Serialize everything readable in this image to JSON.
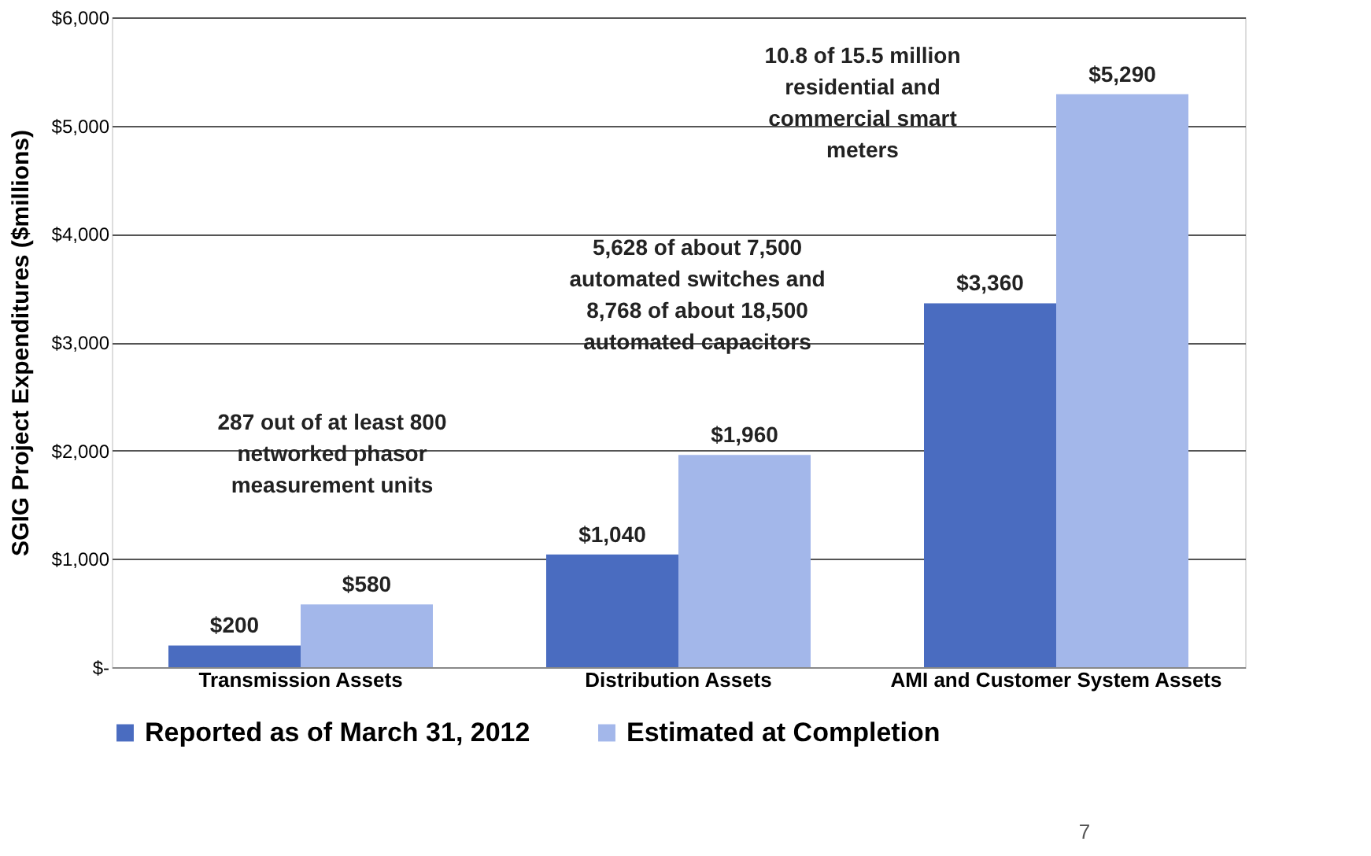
{
  "chart_data": {
    "type": "bar",
    "ylabel": "SGIG Project Expenditures ($millions)",
    "categories": [
      "Transmission Assets",
      "Distribution Assets",
      "AMI and Customer System Assets"
    ],
    "series": [
      {
        "name": "Reported as of March 31, 2012",
        "color": "#4a6cc0",
        "values": [
          200,
          1040,
          3360
        ],
        "value_labels": [
          "$200",
          "$1,040",
          "$3,360"
        ]
      },
      {
        "name": "Estimated at Completion",
        "color": "#a3b7ea",
        "values": [
          580,
          1960,
          5290
        ],
        "value_labels": [
          "$580",
          "$1,960",
          "$5,290"
        ]
      }
    ],
    "ylim": [
      0,
      6000
    ],
    "yticks": [
      {
        "value": 0,
        "label": "$-"
      },
      {
        "value": 1000,
        "label": "$1,000"
      },
      {
        "value": 2000,
        "label": "$2,000"
      },
      {
        "value": 3000,
        "label": "$3,000"
      },
      {
        "value": 4000,
        "label": "$4,000"
      },
      {
        "value": 5000,
        "label": "$5,000"
      },
      {
        "value": 6000,
        "label": "$6,000"
      }
    ],
    "grid": "y",
    "legend": "bottom",
    "annotations": [
      "287 out of at least 800\nnetworked phasor\nmeasurement units",
      "5,628 of about 7,500\nautomated switches and\n8,768 of about 18,500\nautomated capacitors",
      "10.8 of 15.5 million\nresidential and\ncommercial smart\nmeters",
      "7"
    ]
  }
}
